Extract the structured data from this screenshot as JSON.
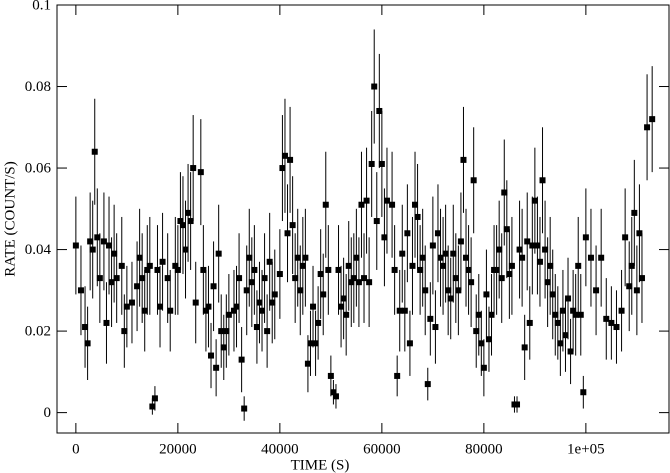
{
  "chart_data": {
    "type": "scatter",
    "x_label": "TIME (S)",
    "y_label": "RATE (COUNT/S)",
    "color": "#000000",
    "xlim": [
      -3700,
      116300
    ],
    "ylim": [
      -0.005,
      0.1
    ],
    "xticks": [
      0,
      20000,
      40000,
      60000,
      80000,
      {
        "value": 100000,
        "label": "1e+05"
      }
    ],
    "yticks": [
      0,
      0.02,
      0.04,
      0.06,
      0.08,
      0.1
    ],
    "x": [
      0,
      1000,
      1800,
      2300,
      2800,
      3300,
      3700,
      4200,
      4700,
      5500,
      6000,
      6500,
      7000,
      7500,
      8000,
      9000,
      9500,
      10000,
      11000,
      12000,
      12500,
      13000,
      13500,
      14000,
      14500,
      15000,
      15500,
      16000,
      16500,
      17000,
      18000,
      18500,
      19500,
      20000,
      20500,
      21000,
      21500,
      22000,
      22500,
      23000,
      23500,
      24500,
      25000,
      25500,
      26000,
      26500,
      27000,
      27500,
      28000,
      28500,
      29000,
      29500,
      30000,
      31000,
      31500,
      32000,
      32500,
      33000,
      33500,
      34000,
      34500,
      35000,
      35500,
      36000,
      36500,
      37000,
      37500,
      38000,
      38500,
      39000,
      40000,
      40500,
      41000,
      41500,
      42000,
      42500,
      43000,
      43500,
      44000,
      44500,
      45000,
      45500,
      46000,
      46500,
      47000,
      47500,
      48000,
      48500,
      49000,
      49500,
      50000,
      50500,
      51000,
      51500,
      52000,
      52500,
      53000,
      53500,
      54000,
      54500,
      55000,
      55500,
      56000,
      56500,
      57000,
      57500,
      58000,
      58500,
      59000,
      59500,
      60000,
      60500,
      61000,
      62000,
      62500,
      63000,
      63500,
      64000,
      64500,
      65000,
      65500,
      66000,
      66500,
      67000,
      67500,
      68000,
      68500,
      69000,
      69500,
      70000,
      70500,
      71000,
      71500,
      72000,
      72500,
      73000,
      73500,
      74000,
      74500,
      75000,
      75500,
      76000,
      76500,
      77000,
      77500,
      78000,
      78500,
      79000,
      79500,
      80000,
      80500,
      81000,
      81500,
      82000,
      82500,
      83000,
      83500,
      84000,
      84500,
      85000,
      85500,
      86000,
      86500,
      87000,
      87500,
      88000,
      88500,
      89000,
      89500,
      90000,
      90500,
      91000,
      91500,
      92000,
      92500,
      93000,
      93500,
      94000,
      94500,
      95000,
      95500,
      96000,
      96500,
      97000,
      97500,
      98000,
      98500,
      99000,
      99500,
      100000,
      101000,
      102000,
      103000,
      104000,
      105000,
      106000,
      107000,
      107700,
      108500,
      109000,
      109500,
      110000,
      110500,
      111000,
      112000,
      113000
    ],
    "values": [
      0.041,
      0.03,
      0.021,
      0.017,
      0.042,
      0.04,
      0.064,
      0.043,
      0.033,
      0.042,
      0.022,
      0.041,
      0.032,
      0.039,
      0.033,
      0.036,
      0.02,
      0.026,
      0.027,
      0.031,
      0.038,
      0.033,
      0.025,
      0.035,
      0.036,
      0.0015,
      0.0035,
      0.035,
      0.026,
      0.037,
      0.033,
      0.025,
      0.036,
      0.035,
      0.047,
      0.046,
      0.04,
      0.049,
      0.047,
      0.06,
      0.027,
      0.059,
      0.035,
      0.025,
      0.026,
      0.014,
      0.031,
      0.011,
      0.039,
      0.02,
      0.016,
      0.02,
      0.024,
      0.025,
      0.026,
      0.033,
      0.013,
      0.001,
      0.03,
      0.038,
      0.032,
      0.035,
      0.021,
      0.027,
      0.025,
      0.033,
      0.02,
      0.037,
      0.027,
      0.029,
      0.034,
      0.06,
      0.063,
      0.044,
      0.062,
      0.046,
      0.033,
      0.038,
      0.03,
      0.036,
      0.038,
      0.012,
      0.017,
      0.026,
      0.017,
      0.022,
      0.034,
      0.029,
      0.051,
      0.035,
      0.009,
      0.005,
      0.004,
      0.035,
      0.026,
      0.028,
      0.024,
      0.036,
      0.032,
      0.033,
      0.038,
      0.032,
      0.051,
      0.033,
      0.052,
      0.032,
      0.061,
      0.08,
      0.047,
      0.074,
      0.061,
      0.043,
      0.052,
      0.051,
      0.035,
      0.009,
      0.025,
      0.039,
      0.025,
      0.044,
      0.017,
      0.036,
      0.051,
      0.048,
      0.035,
      0.038,
      0.03,
      0.007,
      0.023,
      0.041,
      0.021,
      0.044,
      0.038,
      0.036,
      0.039,
      0.03,
      0.028,
      0.039,
      0.033,
      0.03,
      0.042,
      0.062,
      0.038,
      0.035,
      0.032,
      0.057,
      0.02,
      0.024,
      0.017,
      0.011,
      0.029,
      0.018,
      0.024,
      0.035,
      0.035,
      0.04,
      0.033,
      0.054,
      0.045,
      0.034,
      0.036,
      0.002,
      0.002,
      0.04,
      0.038,
      0.016,
      0.042,
      0.022,
      0.041,
      0.052,
      0.041,
      0.037,
      0.057,
      0.04,
      0.032,
      0.036,
      0.029,
      0.024,
      0.022,
      0.017,
      0.025,
      0.019,
      0.028,
      0.015,
      0.025,
      0.024,
      0.036,
      0.024,
      0.005,
      0.043,
      0.038,
      0.03,
      0.038,
      0.023,
      0.022,
      0.021,
      0.025,
      0.043,
      0.031,
      0.036,
      0.049,
      0.03,
      0.044,
      0.033,
      0.07,
      0.072
    ],
    "errors": [
      0.012,
      0.011,
      0.01,
      0.009,
      0.012,
      0.012,
      0.013,
      0.012,
      0.011,
      0.012,
      0.01,
      0.012,
      0.011,
      0.012,
      0.011,
      0.012,
      0.009,
      0.01,
      0.01,
      0.011,
      0.012,
      0.011,
      0.01,
      0.011,
      0.012,
      0.002,
      0.003,
      0.011,
      0.01,
      0.012,
      0.011,
      0.01,
      0.012,
      0.011,
      0.012,
      0.012,
      0.012,
      0.012,
      0.012,
      0.013,
      0.01,
      0.013,
      0.011,
      0.01,
      0.01,
      0.008,
      0.011,
      0.007,
      0.012,
      0.009,
      0.008,
      0.009,
      0.01,
      0.01,
      0.01,
      0.011,
      0.008,
      0.003,
      0.011,
      0.012,
      0.011,
      0.011,
      0.009,
      0.01,
      0.01,
      0.011,
      0.009,
      0.012,
      0.01,
      0.011,
      0.011,
      0.013,
      0.014,
      0.012,
      0.013,
      0.012,
      0.011,
      0.012,
      0.011,
      0.012,
      0.012,
      0.007,
      0.008,
      0.01,
      0.008,
      0.009,
      0.011,
      0.01,
      0.013,
      0.011,
      0.005,
      0.003,
      0.003,
      0.011,
      0.01,
      0.01,
      0.01,
      0.011,
      0.011,
      0.011,
      0.012,
      0.011,
      0.013,
      0.011,
      0.013,
      0.011,
      0.013,
      0.014,
      0.012,
      0.014,
      0.013,
      0.012,
      0.013,
      0.013,
      0.011,
      0.005,
      0.01,
      0.012,
      0.01,
      0.012,
      0.008,
      0.012,
      0.013,
      0.013,
      0.011,
      0.012,
      0.011,
      0.004,
      0.009,
      0.012,
      0.009,
      0.012,
      0.012,
      0.012,
      0.012,
      0.011,
      0.01,
      0.012,
      0.011,
      0.011,
      0.012,
      0.013,
      0.012,
      0.011,
      0.011,
      0.013,
      0.009,
      0.01,
      0.008,
      0.007,
      0.011,
      0.008,
      0.01,
      0.011,
      0.011,
      0.012,
      0.011,
      0.013,
      0.012,
      0.011,
      0.012,
      0.002,
      0.002,
      0.012,
      0.012,
      0.008,
      0.012,
      0.009,
      0.012,
      0.013,
      0.012,
      0.011,
      0.013,
      0.012,
      0.011,
      0.012,
      0.011,
      0.01,
      0.009,
      0.008,
      0.01,
      0.009,
      0.01,
      0.008,
      0.01,
      0.01,
      0.012,
      0.01,
      0.004,
      0.012,
      0.012,
      0.011,
      0.012,
      0.01,
      0.009,
      0.009,
      0.01,
      0.012,
      0.011,
      0.012,
      0.013,
      0.011,
      0.012,
      0.011,
      0.013,
      0.013
    ]
  }
}
